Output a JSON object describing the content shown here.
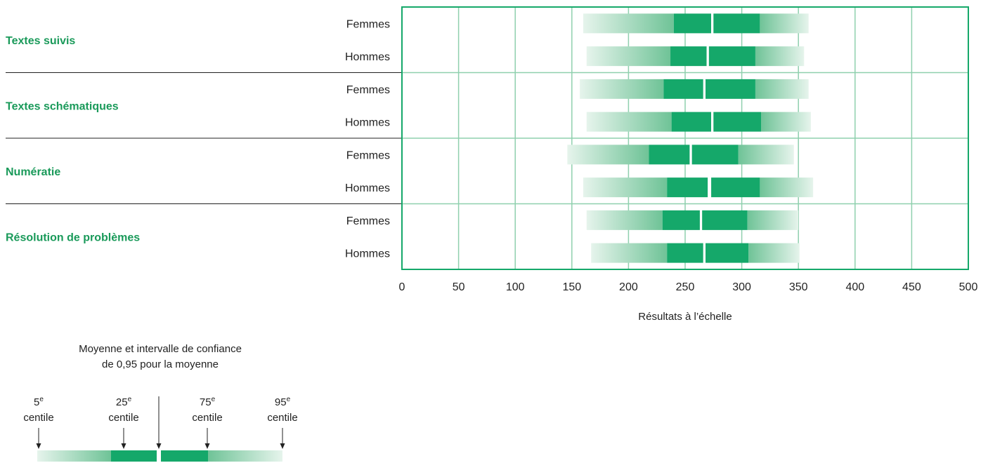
{
  "chart_data": {
    "type": "bar",
    "xlabel": "Résultats à l’échelle",
    "xlim": [
      0,
      500
    ],
    "xticks": [
      0,
      50,
      100,
      150,
      200,
      250,
      300,
      350,
      400,
      450,
      500
    ],
    "grid": true,
    "categories": [
      {
        "name": "Textes suivis",
        "groups": [
          {
            "label": "Femmes",
            "p5": 160,
            "p25": 240,
            "mean": 274,
            "ci_low": 273,
            "ci_high": 275,
            "p75": 316,
            "p95": 359
          },
          {
            "label": "Hommes",
            "p5": 163,
            "p25": 237,
            "mean": 270,
            "ci_low": 269,
            "ci_high": 271,
            "p75": 312,
            "p95": 355
          }
        ]
      },
      {
        "name": "Textes schématiques",
        "groups": [
          {
            "label": "Femmes",
            "p5": 157,
            "p25": 231,
            "mean": 267,
            "ci_low": 266,
            "ci_high": 268,
            "p75": 312,
            "p95": 359
          },
          {
            "label": "Hommes",
            "p5": 163,
            "p25": 238,
            "mean": 274,
            "ci_low": 273,
            "ci_high": 275,
            "p75": 317,
            "p95": 361
          }
        ]
      },
      {
        "name": "Numératie",
        "groups": [
          {
            "label": "Femmes",
            "p5": 146,
            "p25": 218,
            "mean": 255,
            "ci_low": 254,
            "ci_high": 256,
            "p75": 297,
            "p95": 346
          },
          {
            "label": "Hommes",
            "p5": 160,
            "p25": 234,
            "mean": 272,
            "ci_low": 270,
            "ci_high": 273,
            "p75": 316,
            "p95": 363
          }
        ]
      },
      {
        "name": "Résolution de problèmes",
        "groups": [
          {
            "label": "Femmes",
            "p5": 163,
            "p25": 230,
            "mean": 264,
            "ci_low": 263,
            "ci_high": 265,
            "p75": 305,
            "p95": 350
          },
          {
            "label": "Hommes",
            "p5": 167,
            "p25": 234,
            "mean": 267,
            "ci_low": 266,
            "ci_high": 268,
            "p75": 306,
            "p95": 351
          }
        ]
      }
    ],
    "legend": {
      "title_lines": [
        "Moyenne et intervalle de confiance",
        "de 0,95 pour la moyenne"
      ],
      "items": [
        {
          "num": "5",
          "sup": "e",
          "word": "centile"
        },
        {
          "num": "25",
          "sup": "e",
          "word": "centile"
        },
        {
          "num": "75",
          "sup": "e",
          "word": "centile"
        },
        {
          "num": "95",
          "sup": "e",
          "word": "centile"
        }
      ]
    },
    "colors": {
      "dark": "#15a86a",
      "pale": "#e6f4ec",
      "mid": "#6fc397",
      "grid": "#8fd0ae",
      "frame": "#15a86a",
      "category_text": "#1a9a5a"
    }
  }
}
